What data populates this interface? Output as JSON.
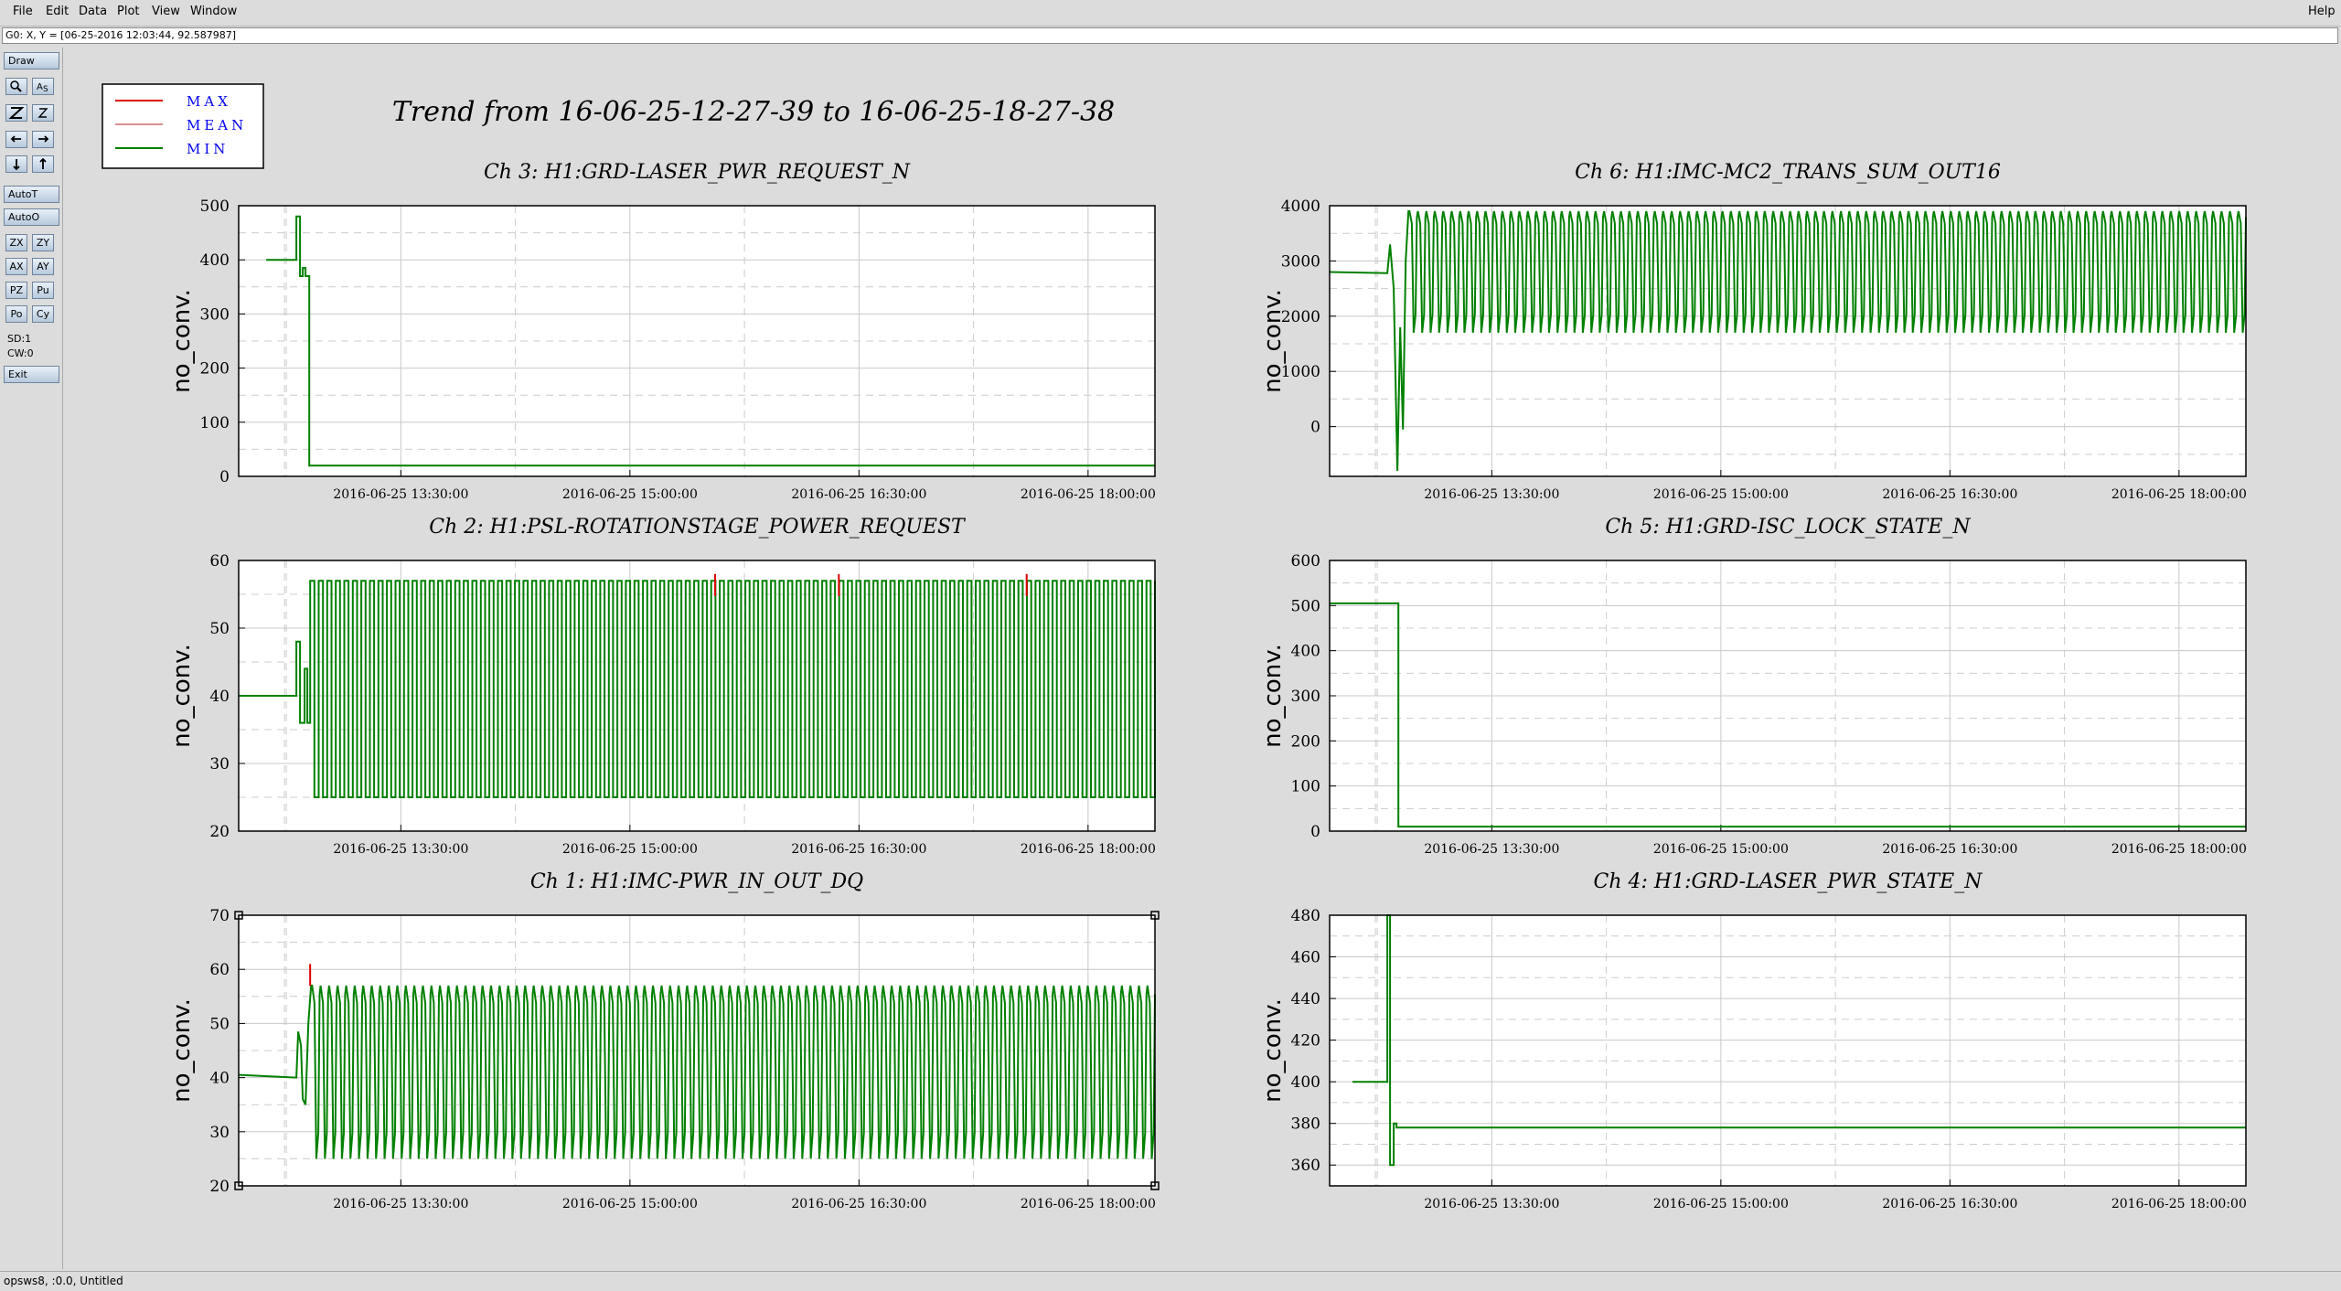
{
  "menubar": {
    "items": [
      "File",
      "Edit",
      "Data",
      "Plot",
      "View",
      "Window"
    ],
    "help": "Help"
  },
  "coords": {
    "text": "G0: X, Y = [06-25-2016 12:03:44, 92.587987]"
  },
  "toolbox": {
    "draw": "Draw",
    "tools": [
      [
        "zoom-icon",
        "as-icon"
      ],
      [
        "z-bold-icon",
        "z-icon"
      ],
      [
        "arrow-left-icon",
        "arrow-right-icon"
      ],
      [
        "arrow-down-icon",
        "arrow-up-icon"
      ]
    ],
    "autot": "AutoT",
    "autoo": "AutoO",
    "buttons": [
      [
        "ZX",
        "ZY"
      ],
      [
        "AX",
        "AY"
      ],
      [
        "PZ",
        "Pu"
      ],
      [
        "Po",
        "Cy"
      ]
    ],
    "sd": "SD:1",
    "cw": "CW:0",
    "exit": "Exit"
  },
  "legend": {
    "items": [
      {
        "label": "MAX",
        "color": "#dd0000"
      },
      {
        "label": "MEAN",
        "color": "#d06a6a"
      },
      {
        "label": "MIN",
        "color": "#008000"
      }
    ]
  },
  "page_title": "Trend from 16-06-25-12-27-39 to 16-06-25-18-27-38",
  "statusbar": {
    "text": "opsws8, :0.0, Untitled"
  },
  "colors": {
    "min": "#008000",
    "max": "#dd0000",
    "grid_solid": "#c8c8c8",
    "grid_dash": "#cccccc"
  },
  "chart_data": [
    {
      "type": "line",
      "title": "Ch 3: H1:GRD-LASER_PWR_REQUEST_N",
      "ylabel": "no_conv.",
      "ylim": [
        0,
        500
      ],
      "yticks": [
        0,
        100,
        200,
        300,
        400,
        500
      ],
      "xticks": [
        "2016-06-25 13:30:00",
        "2016-06-25 15:00:00",
        "2016-06-25 16:30:00",
        "2016-06-25 18:00:00"
      ],
      "shape": "step",
      "points_min": [
        [
          0.03,
          400
        ],
        [
          0.063,
          400
        ],
        [
          0.063,
          480
        ],
        [
          0.067,
          480
        ],
        [
          0.067,
          370
        ],
        [
          0.07,
          370
        ],
        [
          0.07,
          385
        ],
        [
          0.073,
          385
        ],
        [
          0.073,
          370
        ],
        [
          0.077,
          370
        ],
        [
          0.077,
          20
        ],
        [
          1.0,
          20
        ]
      ]
    },
    {
      "type": "line",
      "title": "Ch 6: H1:IMC-MC2_TRANS_SUM_OUT16",
      "ylabel": "no_conv.",
      "ylim": [
        -900,
        4000
      ],
      "yticks": [
        0,
        1000,
        2000,
        3000,
        4000
      ],
      "xticks": [
        "2016-06-25 13:30:00",
        "2016-06-25 15:00:00",
        "2016-06-25 16:30:00",
        "2016-06-25 18:00:00"
      ],
      "shape": "osc",
      "pre": [
        [
          0.0,
          2800
        ],
        [
          0.063,
          2780
        ],
        [
          0.066,
          3300
        ],
        [
          0.07,
          2500
        ],
        [
          0.074,
          -800
        ],
        [
          0.077,
          1800
        ],
        [
          0.08,
          -50
        ],
        [
          0.083,
          3000
        ],
        [
          0.086,
          3900
        ]
      ],
      "osc": {
        "start": 0.086,
        "end": 1.0,
        "cycles": 99,
        "low": 1700,
        "high": 3900
      }
    },
    {
      "type": "line",
      "title": "Ch 2: H1:PSL-ROTATIONSTAGE_POWER_REQUEST",
      "ylabel": "no_conv.",
      "ylim": [
        20,
        60
      ],
      "yticks": [
        20,
        30,
        40,
        50,
        60
      ],
      "xticks": [
        "2016-06-25 13:30:00",
        "2016-06-25 15:00:00",
        "2016-06-25 16:30:00",
        "2016-06-25 18:00:00"
      ],
      "shape": "square",
      "pre": [
        [
          0.0,
          40
        ],
        [
          0.063,
          40
        ],
        [
          0.063,
          48
        ],
        [
          0.067,
          48
        ],
        [
          0.067,
          36
        ],
        [
          0.072,
          36
        ],
        [
          0.072,
          44
        ],
        [
          0.075,
          44
        ],
        [
          0.075,
          36
        ],
        [
          0.078,
          36
        ],
        [
          0.078,
          57
        ]
      ],
      "osc": {
        "start": 0.078,
        "end": 1.0,
        "cycles": 99,
        "low": 25,
        "high": 57
      },
      "max_spikes": [
        [
          0.52,
          58
        ],
        [
          0.655,
          58
        ],
        [
          0.86,
          58
        ]
      ]
    },
    {
      "type": "line",
      "title": "Ch 5: H1:GRD-ISC_LOCK_STATE_N",
      "ylabel": "no_conv.",
      "ylim": [
        0,
        600
      ],
      "yticks": [
        0,
        100,
        200,
        300,
        400,
        500,
        600
      ],
      "xticks": [
        "2016-06-25 13:30:00",
        "2016-06-25 15:00:00",
        "2016-06-25 16:30:00",
        "2016-06-25 18:00:00"
      ],
      "shape": "step",
      "points_min": [
        [
          0.0,
          505
        ],
        [
          0.075,
          505
        ],
        [
          0.075,
          10
        ],
        [
          1.0,
          10
        ]
      ]
    },
    {
      "type": "line",
      "title": "Ch 1: H1:IMC-PWR_IN_OUT_DQ",
      "ylabel": "no_conv.",
      "ylim": [
        20,
        70
      ],
      "yticks": [
        20,
        30,
        40,
        50,
        60,
        70
      ],
      "xticks": [
        "2016-06-25 13:30:00",
        "2016-06-25 15:00:00",
        "2016-06-25 16:30:00",
        "2016-06-25 18:00:00"
      ],
      "shape": "osc",
      "pre": [
        [
          0.0,
          40.5
        ],
        [
          0.063,
          40
        ],
        [
          0.065,
          48.5
        ],
        [
          0.068,
          46
        ],
        [
          0.07,
          36
        ],
        [
          0.073,
          35
        ],
        [
          0.076,
          50
        ],
        [
          0.079,
          57
        ]
      ],
      "osc": {
        "start": 0.079,
        "end": 1.0,
        "cycles": 99,
        "low": 25,
        "high": 57
      },
      "max_spikes": [
        [
          0.078,
          61
        ]
      ]
    },
    {
      "type": "line",
      "title": "Ch 4: H1:GRD-LASER_PWR_STATE_N",
      "ylabel": "no_conv.",
      "ylim": [
        350,
        480
      ],
      "yticks": [
        360,
        380,
        400,
        420,
        440,
        460,
        480
      ],
      "xticks": [
        "2016-06-25 13:30:00",
        "2016-06-25 15:00:00",
        "2016-06-25 16:30:00",
        "2016-06-25 18:00:00"
      ],
      "shape": "step",
      "points_min": [
        [
          0.025,
          400
        ],
        [
          0.063,
          400
        ],
        [
          0.063,
          480
        ],
        [
          0.066,
          480
        ],
        [
          0.066,
          360
        ],
        [
          0.07,
          360
        ],
        [
          0.07,
          380
        ],
        [
          0.073,
          380
        ],
        [
          0.073,
          378
        ],
        [
          1.0,
          378
        ]
      ]
    }
  ]
}
